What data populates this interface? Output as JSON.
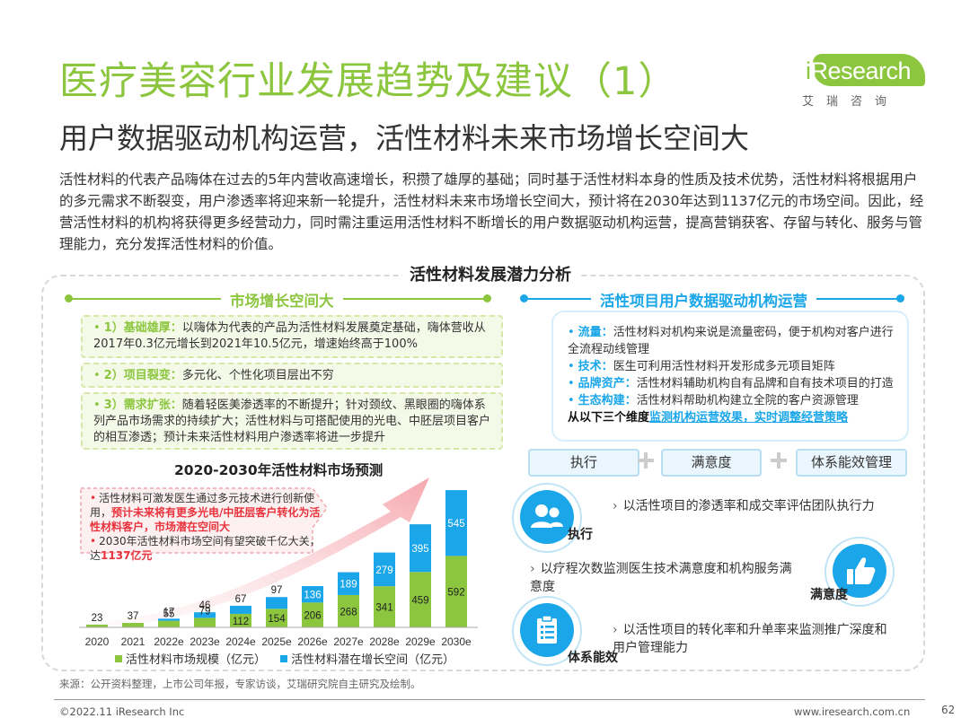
{
  "header": {
    "title": "医疗美容行业发展趋势及建议（1）",
    "subtitle": "用户数据驱动机构运营，活性材料未来市场增长空间大",
    "logo": {
      "name": "iResearch",
      "sub": "艾瑞咨询"
    }
  },
  "intro": "活性材料的代表产品嗨体在过去的5年内营收高速增长，积攒了雄厚的基础；同时基于活性材料本身的性质及技术优势，活性材料将根据用户的多元需求不断裂变，用户渗透率将迎来新一轮提升，活性材料未来市场增长空间大，预计将在2030年达到1137亿元的市场空间。因此，经营活性材料的机构将获得更多经营动力，同时需注重运用活性材料不断增长的用户数据驱动机构运营，提高营销获客、存留与转化、服务与管理能力，充分发挥活性材料的价值。",
  "panel_title": "活性材料发展潜力分析",
  "left": {
    "heading": "市场增长空间大",
    "items": [
      {
        "label": "1）基础雄厚：",
        "text": "以嗨体为代表的产品为活性材料发展奠定基础，嗨体营收从2017年0.3亿元增长到2021年10.5亿元，增速始终高于100%"
      },
      {
        "label": "2）项目裂变：",
        "text": "多元化、个性化项目层出不穷"
      },
      {
        "label": "3）需求扩张：",
        "text": "随着轻医美渗透率的不断提升；针对颈纹、黑眼圈的嗨体系列产品市场需求的持续扩大；活性材料与可搭配使用的光电、中胚层项目客户的相互渗透；预计未来活性材料用户渗透率将进一步提升"
      }
    ],
    "callout": {
      "line1_a": "活性材料可激发医生通过多元技术进行创新使用，",
      "line1_hl": "预计未来将有更多光电/中胚层客户转化为活性材料客户，市场潜在空间大",
      "line2_a": "2030年活性材料市场空间有望突破千亿大关，达",
      "line2_hl": "1137亿元"
    }
  },
  "right": {
    "heading": "活性项目用户数据驱动机构运营",
    "items": [
      {
        "label": "流量：",
        "text": "活性材料对机构来说是流量密码，便于机构对客户进行全流程动线管理"
      },
      {
        "label": "技术：",
        "text": "医生可利用活性材料开发形成多元项目矩阵"
      },
      {
        "label": "品牌资产：",
        "text": "活性材料辅助机构自有品牌和自有技术项目的打造"
      },
      {
        "label": "生态构建：",
        "text": "活性材料帮助机构建立全院的客户资源管理"
      }
    ],
    "dimension_note_a": "从以下三个维度",
    "dimension_note_b": "监测机构运营效果，实时调整经营策略",
    "pills": [
      "执行",
      "满意度",
      "体系能效管理"
    ],
    "points": [
      {
        "caption": "执行",
        "icon": "team-icon",
        "text": "以活性项目的渗透率和成交率评估团队执行力"
      },
      {
        "caption": "满意度",
        "icon": "thumbs-up-icon",
        "text": "以疗程次数监测医生技术满意度和机构服务满意度"
      },
      {
        "caption": "体系能效",
        "icon": "clipboard-icon",
        "text": "以活性项目的转化率和升单率来监测推广深度和用户管理能力"
      }
    ]
  },
  "chart_data": {
    "type": "bar",
    "stacked": true,
    "title": "2020-2030年活性材料市场预测",
    "categories": [
      "2020",
      "2021",
      "2022e",
      "2023e",
      "2024e",
      "2025e",
      "2026e",
      "2027e",
      "2028e",
      "2029e",
      "2030e"
    ],
    "series": [
      {
        "name": "活性材料市场规模（亿元）",
        "color": "#8cc63f",
        "values": [
          23,
          37,
          55,
          79,
          112,
          154,
          206,
          268,
          341,
          459,
          592
        ]
      },
      {
        "name": "活性材料潜在增长空间（亿元）",
        "color": "#1aa6e8",
        "values": [
          null,
          null,
          17,
          46,
          67,
          97,
          136,
          189,
          279,
          395,
          545
        ]
      }
    ],
    "top_labels": [
      "23",
      "37",
      "17",
      "46",
      "67",
      "97",
      "136",
      "189",
      "279",
      "395",
      "545"
    ]
  },
  "footer": {
    "source": "来源：公开资料整理，上市公司年报，专家访谈，艾瑞研究院自主研究及绘制。",
    "copyright": "©2022.11 iResearch Inc",
    "site": "www.iresearch.com.cn",
    "page": "62"
  }
}
